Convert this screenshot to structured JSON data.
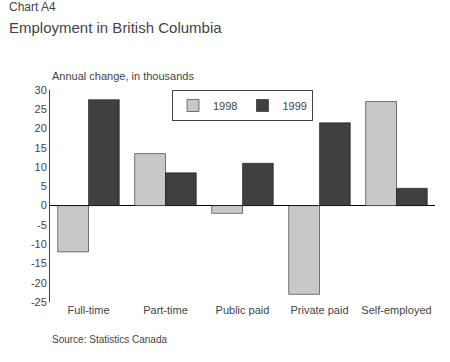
{
  "chart_data": {
    "type": "bar",
    "title": "Chart A4",
    "subtitle": "Employment in British Columbia",
    "annotations": [
      "Annual change, in thousands",
      "Source: Statistics Canada"
    ],
    "categories": [
      "Full-time",
      "Part-time",
      "Public paid",
      "Private paid",
      "Self-employed"
    ],
    "series": [
      {
        "name": "1998",
        "color": "#c8c8c8",
        "values": [
          -12,
          13.5,
          -2,
          -23,
          27
        ]
      },
      {
        "name": "1999",
        "color": "#404040",
        "values": [
          27.5,
          8.5,
          11,
          21.5,
          4.5
        ]
      }
    ],
    "ylim": [
      -25,
      30
    ],
    "yticks": [
      -25,
      -20,
      -15,
      -10,
      -5,
      0,
      5,
      10,
      15,
      20,
      25,
      30
    ],
    "legend": "upper center",
    "grid": false
  }
}
